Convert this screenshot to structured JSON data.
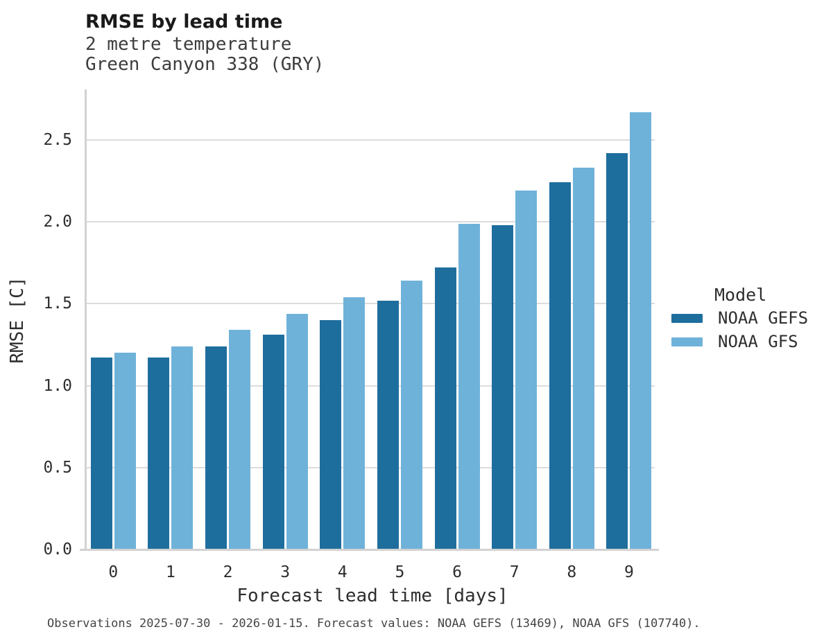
{
  "header": {
    "title": "RMSE by lead time",
    "subtitle1": "2 metre temperature",
    "subtitle2": "Green Canyon 338 (GRY)"
  },
  "chart_data": {
    "type": "bar",
    "title": "RMSE by lead time",
    "subtitle": [
      "2 metre temperature",
      "Green Canyon 338 (GRY)"
    ],
    "categories": [
      "0",
      "1",
      "2",
      "3",
      "4",
      "5",
      "6",
      "7",
      "8",
      "9"
    ],
    "series": [
      {
        "name": "NOAA GEFS",
        "color": "#1e6e9d",
        "values": [
          1.17,
          1.17,
          1.24,
          1.31,
          1.4,
          1.52,
          1.72,
          1.98,
          2.24,
          2.42
        ]
      },
      {
        "name": "NOAA GFS",
        "color": "#6fb2d9",
        "values": [
          1.2,
          1.24,
          1.34,
          1.44,
          1.54,
          1.64,
          1.99,
          2.19,
          2.33,
          2.67
        ]
      }
    ],
    "xlabel": "Forecast lead time [days]",
    "ylabel": "RMSE [C]",
    "ylim": [
      0,
      2.81
    ],
    "yticks": [
      0.0,
      0.5,
      1.0,
      1.5,
      2.0,
      2.5
    ],
    "ytick_labels": [
      "0.0",
      "0.5",
      "1.0",
      "1.5",
      "2.0",
      "2.5"
    ],
    "grid": true,
    "legend_title": "Model",
    "legend_position": "right"
  },
  "legend": {
    "title": "Model",
    "entries": [
      {
        "label": "NOAA GEFS",
        "color": "#1e6e9d"
      },
      {
        "label": "NOAA GFS",
        "color": "#6fb2d9"
      }
    ]
  },
  "footer": {
    "text": "Observations 2025-07-30 - 2026-01-15. Forecast values: NOAA GEFS (13469), NOAA GFS (107740)."
  },
  "colors": {
    "series_dark_blue": "#1e6e9d",
    "series_light_blue": "#6fb2d9",
    "gridline": "#dcdcdc",
    "axis_line": "#d2d2d2"
  }
}
